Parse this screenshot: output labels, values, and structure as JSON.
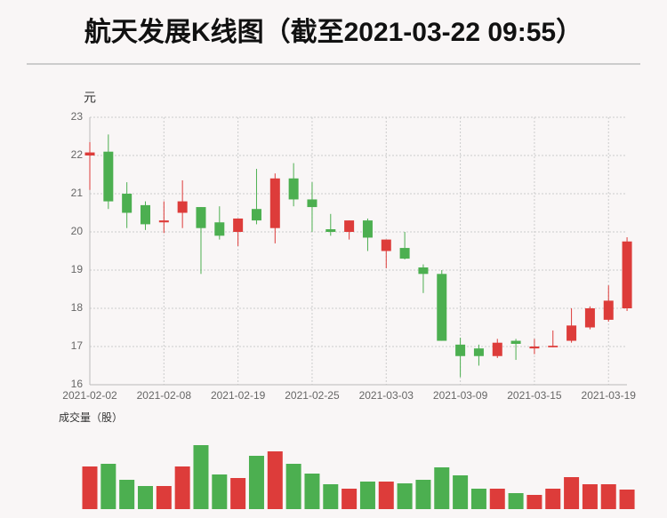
{
  "chart_data": {
    "type": "candlestick",
    "title": "航天发展K线图（截至2021-03-22 09:55）",
    "y_label": "元",
    "volume_label": "成交量（股）",
    "categories": [
      "2021-02-02",
      null,
      null,
      null,
      "2021-02-08",
      null,
      null,
      null,
      "2021-02-19",
      null,
      null,
      null,
      "2021-02-25",
      null,
      null,
      null,
      "2021-03-03",
      null,
      null,
      null,
      "2021-03-09",
      null,
      null,
      null,
      "2021-03-15",
      null,
      null,
      null,
      "2021-03-19",
      null
    ],
    "open": [
      22.0,
      22.1,
      21.0,
      20.7,
      20.25,
      20.5,
      20.65,
      20.25,
      20.0,
      20.6,
      20.1,
      21.4,
      20.85,
      20.07,
      20.0,
      20.3,
      19.5,
      19.58,
      19.07,
      18.9,
      17.05,
      16.95,
      16.75,
      17.15,
      16.95,
      16.98,
      17.15,
      17.5,
      17.7,
      18.0
    ],
    "high": [
      22.35,
      22.55,
      21.3,
      20.8,
      20.8,
      21.35,
      20.65,
      20.67,
      20.35,
      21.65,
      21.53,
      21.8,
      21.3,
      20.47,
      20.3,
      20.35,
      19.8,
      20.0,
      19.15,
      19.0,
      17.23,
      17.05,
      17.2,
      17.2,
      17.2,
      17.42,
      18.0,
      18.05,
      18.6,
      19.86
    ],
    "low": [
      21.1,
      20.6,
      20.1,
      20.05,
      19.97,
      20.1,
      18.9,
      19.8,
      19.63,
      20.2,
      19.7,
      20.67,
      20.0,
      19.9,
      19.8,
      19.5,
      19.05,
      19.28,
      18.4,
      17.15,
      16.2,
      16.5,
      16.7,
      16.65,
      16.8,
      16.98,
      17.1,
      17.45,
      17.65,
      17.93
    ],
    "close": [
      22.08,
      20.8,
      20.5,
      20.2,
      20.3,
      20.8,
      20.1,
      19.9,
      20.35,
      20.3,
      21.4,
      20.85,
      20.65,
      20.0,
      20.3,
      19.85,
      19.8,
      19.3,
      18.9,
      17.15,
      16.75,
      16.75,
      17.1,
      17.07,
      17.0,
      17.02,
      17.55,
      18.0,
      18.2,
      19.75
    ],
    "volume": [
      48,
      51,
      33,
      26,
      26,
      48,
      72,
      39,
      35,
      60,
      65,
      51,
      40,
      28,
      23,
      31,
      31,
      29,
      33,
      47,
      38,
      23,
      23,
      18,
      16,
      23,
      36,
      28,
      28,
      22
    ],
    "volume_ylim": [
      0,
      72
    ],
    "ylim": [
      16,
      23
    ],
    "yticks": [
      16,
      17,
      18,
      19,
      20,
      21,
      22,
      23
    ],
    "grid": true,
    "up_color": "#dd3c3a",
    "down_color": "#4caf50"
  }
}
